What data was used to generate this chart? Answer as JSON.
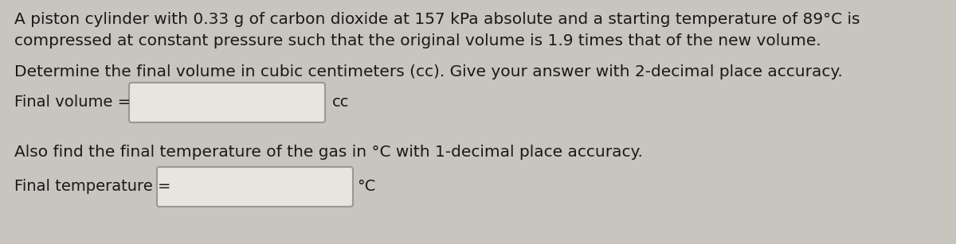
{
  "background_color": "#c8c4be",
  "line1": "A piston cylinder with 0.33 g of carbon dioxide at 157 kPa absolute and a starting temperature of 89°C is",
  "line2": "compressed at constant pressure such that the original volume is 1.9 times that of the new volume.",
  "line3": "Determine the final volume in cubic centimeters (cc). Give your answer with 2-decimal place accuracy.",
  "label1": "Final volume =",
  "unit1": "cc",
  "line4": "Also find the final temperature of the gas in °C with 1-decimal place accuracy.",
  "label2": "Final temperature =",
  "unit2": "°C",
  "box_facecolor": "#e8e4de",
  "box_edgecolor": "#999990",
  "text_color": "#1a1a1a",
  "font_size_body": 14.5,
  "font_size_label": 14.0
}
